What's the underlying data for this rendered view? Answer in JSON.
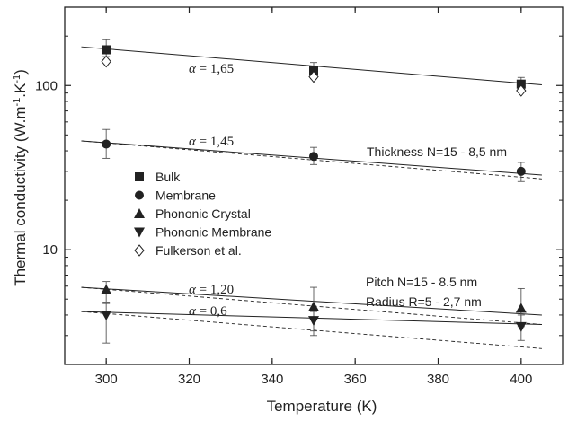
{
  "chart_data": {
    "type": "scatter",
    "title": "",
    "xlabel": "Temperature (K)",
    "ylabel_parts": [
      "Thermal conductivity (W.m",
      "-1",
      ".K",
      "-1",
      ")"
    ],
    "xlim": [
      290,
      410
    ],
    "ylim": [
      2,
      300
    ],
    "yscale": "log",
    "x_ticks": [
      300,
      320,
      340,
      360,
      380,
      400
    ],
    "y_ticks": [
      10,
      100
    ],
    "y_tick_labels": [
      "10",
      "100"
    ],
    "grid": false,
    "legend_position": "left",
    "series": [
      {
        "name": "Bulk",
        "marker": "filled-square",
        "x": [
          300,
          350,
          400
        ],
        "y": [
          165,
          123,
          102
        ],
        "err_low": [
          150,
          110,
          95
        ],
        "err_high": [
          190,
          138,
          112
        ],
        "color": "#222222"
      },
      {
        "name": "Membrane",
        "marker": "filled-circle",
        "x": [
          300,
          350,
          400
        ],
        "y": [
          44,
          37,
          30
        ],
        "err_low": [
          36,
          33,
          26
        ],
        "err_high": [
          54,
          42,
          34
        ],
        "color": "#222222"
      },
      {
        "name": "Phononic Crystal",
        "marker": "filled-triangle-up",
        "x": [
          300,
          350,
          400
        ],
        "y": [
          5.7,
          4.5,
          4.4
        ],
        "err_low": [
          4.8,
          3.2,
          3.4
        ],
        "err_high": [
          6.4,
          5.9,
          5.8
        ],
        "color": "#222222"
      },
      {
        "name": "Phononic Membrane",
        "marker": "filled-triangle-down",
        "x": [
          300,
          350,
          400
        ],
        "y": [
          4.0,
          3.7,
          3.4
        ],
        "err_low": [
          2.7,
          3.0,
          2.8
        ],
        "err_high": [
          4.7,
          4.2,
          4.0
        ],
        "color": "#222222"
      },
      {
        "name": "Fulkerson et al.",
        "marker": "open-diamond",
        "x": [
          300,
          350,
          400
        ],
        "y": [
          140,
          113,
          93
        ],
        "color": "#222222"
      }
    ],
    "fit_lines": [
      {
        "style": "solid",
        "x": [
          294,
          405
        ],
        "y": [
          172,
          101
        ]
      },
      {
        "style": "solid",
        "x": [
          294,
          405
        ],
        "y": [
          46,
          28.5
        ]
      },
      {
        "style": "dashed",
        "x": [
          294,
          405
        ],
        "y": [
          46,
          27
        ]
      },
      {
        "style": "solid",
        "x": [
          294,
          405
        ],
        "y": [
          5.9,
          4.0
        ]
      },
      {
        "style": "dashed",
        "x": [
          294,
          405
        ],
        "y": [
          5.9,
          3.5
        ]
      },
      {
        "style": "solid",
        "x": [
          294,
          405
        ],
        "y": [
          4.2,
          3.5
        ]
      },
      {
        "style": "dashed",
        "x": [
          294,
          405
        ],
        "y": [
          4.2,
          2.5
        ]
      }
    ],
    "alpha_labels": [
      "1,65",
      "1,45",
      "1,20",
      "0,6"
    ],
    "alpha_symbol": "α",
    "alpha_equals": " = ",
    "annotations": {
      "thickness": "Thickness N=15 - 8,5 nm",
      "pitch": "Pitch N=15  - 8.5 nm",
      "radius": "Radius R=5 - 2,7 nm"
    }
  }
}
